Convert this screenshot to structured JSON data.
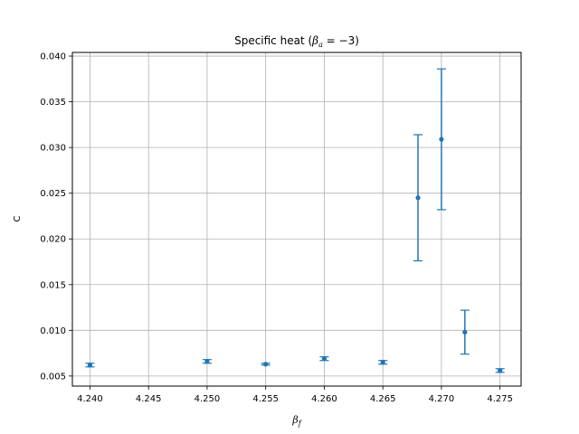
{
  "chart_data": {
    "type": "scatter",
    "title_main": "Specific heat (",
    "title_math_beta": "β",
    "title_math_sub": "a",
    "title_math_rest": " = −3)",
    "title_close": "",
    "xlabel_beta": "β",
    "xlabel_sub": "f",
    "ylabel": "C",
    "xlim": [
      4.2385,
      4.2768
    ],
    "ylim": [
      0.0039,
      0.0404
    ],
    "x_ticks": [
      "4.240",
      "4.245",
      "4.250",
      "4.255",
      "4.260",
      "4.265",
      "4.270",
      "4.275"
    ],
    "x_tick_values": [
      4.24,
      4.245,
      4.25,
      4.255,
      4.26,
      4.265,
      4.27,
      4.275
    ],
    "y_ticks": [
      "0.005",
      "0.010",
      "0.015",
      "0.020",
      "0.025",
      "0.030",
      "0.035",
      "0.040"
    ],
    "y_tick_values": [
      0.005,
      0.01,
      0.015,
      0.02,
      0.025,
      0.03,
      0.035,
      0.04
    ],
    "grid": true,
    "color": "#1f77b4",
    "points": [
      {
        "x": 4.24,
        "y": 0.0062,
        "err": 0.0002
      },
      {
        "x": 4.25,
        "y": 0.0066,
        "err": 0.0002
      },
      {
        "x": 4.255,
        "y": 0.0063,
        "err": 0.0001
      },
      {
        "x": 4.26,
        "y": 0.0069,
        "err": 0.0002
      },
      {
        "x": 4.265,
        "y": 0.0065,
        "err": 0.0002
      },
      {
        "x": 4.268,
        "y": 0.0245,
        "err": 0.0069
      },
      {
        "x": 4.27,
        "y": 0.0309,
        "err": 0.0077
      },
      {
        "x": 4.272,
        "y": 0.0098,
        "err": 0.0024
      },
      {
        "x": 4.275,
        "y": 0.0056,
        "err": 0.0002
      }
    ]
  }
}
